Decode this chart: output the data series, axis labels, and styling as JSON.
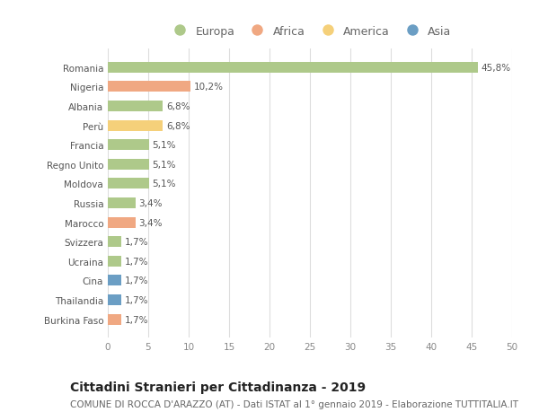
{
  "countries": [
    "Romania",
    "Nigeria",
    "Albania",
    "Perù",
    "Francia",
    "Regno Unito",
    "Moldova",
    "Russia",
    "Marocco",
    "Svizzera",
    "Ucraina",
    "Cina",
    "Thailandia",
    "Burkina Faso"
  ],
  "values": [
    45.8,
    10.2,
    6.8,
    6.8,
    5.1,
    5.1,
    5.1,
    3.4,
    3.4,
    1.7,
    1.7,
    1.7,
    1.7,
    1.7
  ],
  "labels": [
    "45,8%",
    "10,2%",
    "6,8%",
    "6,8%",
    "5,1%",
    "5,1%",
    "5,1%",
    "3,4%",
    "3,4%",
    "1,7%",
    "1,7%",
    "1,7%",
    "1,7%",
    "1,7%"
  ],
  "continents": [
    "Europa",
    "Africa",
    "Europa",
    "America",
    "Europa",
    "Europa",
    "Europa",
    "Europa",
    "Africa",
    "Europa",
    "Europa",
    "Asia",
    "Asia",
    "Africa"
  ],
  "continent_colors": {
    "Europa": "#aec98a",
    "Africa": "#f0a882",
    "America": "#f5d07a",
    "Asia": "#6b9ec4"
  },
  "legend_order": [
    "Europa",
    "Africa",
    "America",
    "Asia"
  ],
  "xlim": [
    0,
    50
  ],
  "xticks": [
    0,
    5,
    10,
    15,
    20,
    25,
    30,
    35,
    40,
    45,
    50
  ],
  "title": "Cittadini Stranieri per Cittadinanza - 2019",
  "subtitle": "COMUNE DI ROCCA D'ARAZZO (AT) - Dati ISTAT al 1° gennaio 2019 - Elaborazione TUTTITALIA.IT",
  "background_color": "#ffffff",
  "grid_color": "#dddddd",
  "bar_height": 0.55,
  "label_fontsize": 7.5,
  "title_fontsize": 10,
  "subtitle_fontsize": 7.5,
  "tick_fontsize": 7.5,
  "legend_fontsize": 9
}
